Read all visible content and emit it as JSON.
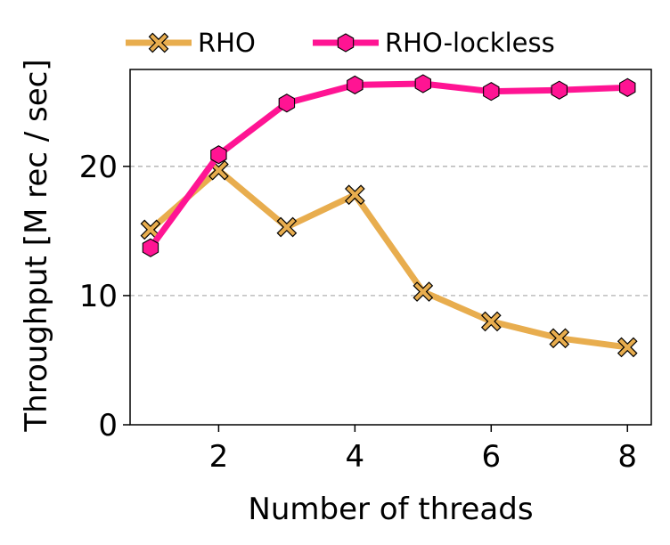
{
  "chart_data": {
    "type": "line",
    "title": "",
    "xlabel": "Number of threads",
    "ylabel": "Throughput [M rec / sec]",
    "x": [
      1,
      2,
      3,
      4,
      5,
      6,
      7,
      8
    ],
    "xlim": [
      0.7,
      8.35
    ],
    "ylim": [
      0,
      27.5
    ],
    "xticks": [
      2,
      4,
      6,
      8
    ],
    "yticks": [
      0,
      10,
      20
    ],
    "grid": "horizontal-dashed",
    "legend_position": "top",
    "series": [
      {
        "name": "RHO",
        "color": "#E8AD4E",
        "marker": "x-filled",
        "values": [
          15.1,
          19.7,
          15.3,
          17.8,
          10.3,
          8.0,
          6.7,
          6.0
        ]
      },
      {
        "name": "RHO-lockless",
        "color": "#FF1493",
        "marker": "hexagon",
        "values": [
          13.7,
          20.9,
          24.9,
          26.3,
          26.4,
          25.8,
          25.9,
          26.1
        ]
      }
    ]
  }
}
